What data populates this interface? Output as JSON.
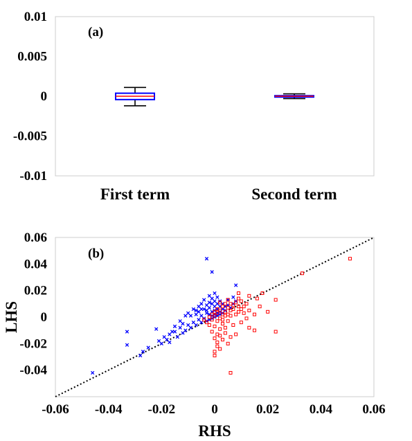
{
  "chart_data": [
    {
      "type": "box",
      "panel_label": "(a)",
      "categories": [
        "First term",
        "Second term"
      ],
      "ylim": [
        -0.01,
        0.01
      ],
      "yticks": [
        "0.01",
        "0.005",
        "0",
        "-0.005",
        "-0.01"
      ],
      "boxes": [
        {
          "whisker_low": -0.0012,
          "q1": -0.00042,
          "median": 0.0,
          "q3": 0.00038,
          "whisker_high": 0.0011
        },
        {
          "whisker_low": -0.0003,
          "q1": -7e-05,
          "median": 0.0,
          "q3": 7e-05,
          "whisker_high": 0.0003
        }
      ],
      "colors": {
        "box": "#0000ff",
        "median": "#ff0000",
        "whisker": "#000000"
      }
    },
    {
      "type": "scatter",
      "panel_label": "(b)",
      "xlabel": "RHS",
      "ylabel": "LHS",
      "xlim": [
        -0.06,
        0.06
      ],
      "ylim": [
        -0.06,
        0.06
      ],
      "xticks": [
        "-0.06",
        "-0.04",
        "-0.02",
        "0",
        "0.02",
        "0.04",
        "0.06"
      ],
      "yticks": [
        "0.06",
        "0.04",
        "0.02",
        "0",
        "-0.02",
        "-0.04"
      ],
      "reference_line": "y = x (dotted)",
      "series": [
        {
          "marker": "x",
          "color": "#0000ff",
          "points": [
            [
              -0.046,
              -0.042
            ],
            [
              -0.033,
              -0.011
            ],
            [
              -0.033,
              -0.021
            ],
            [
              -0.028,
              -0.029
            ],
            [
              -0.027,
              -0.026
            ],
            [
              -0.025,
              -0.023
            ],
            [
              -0.022,
              -0.009
            ],
            [
              -0.021,
              -0.018
            ],
            [
              -0.02,
              -0.02
            ],
            [
              -0.019,
              -0.015
            ],
            [
              -0.018,
              -0.017
            ],
            [
              -0.017,
              -0.013
            ],
            [
              -0.016,
              -0.011
            ],
            [
              -0.015,
              -0.007
            ],
            [
              -0.014,
              -0.015
            ],
            [
              -0.013,
              -0.008
            ],
            [
              -0.012,
              -0.012
            ],
            [
              -0.012,
              -0.005
            ],
            [
              -0.011,
              -0.01
            ],
            [
              -0.01,
              0.003
            ],
            [
              -0.01,
              -0.006
            ],
            [
              -0.009,
              -0.008
            ],
            [
              -0.009,
              0.001
            ],
            [
              -0.008,
              -0.004
            ],
            [
              -0.008,
              0.006
            ],
            [
              -0.007,
              -0.006
            ],
            [
              -0.007,
              0.002
            ],
            [
              -0.006,
              0.008
            ],
            [
              -0.006,
              -0.002
            ],
            [
              -0.006,
              0.004
            ],
            [
              -0.005,
              0.01
            ],
            [
              -0.005,
              -0.004
            ],
            [
              -0.005,
              0.001
            ],
            [
              -0.004,
              0.006
            ],
            [
              -0.004,
              0.013
            ],
            [
              -0.004,
              -0.001
            ],
            [
              -0.003,
              0.044
            ],
            [
              -0.003,
              0.003
            ],
            [
              -0.003,
              0.009
            ],
            [
              -0.003,
              -0.003
            ],
            [
              -0.002,
              0.016
            ],
            [
              -0.002,
              0.002
            ],
            [
              -0.002,
              0.007
            ],
            [
              -0.002,
              0.011
            ],
            [
              -0.002,
              -0.002
            ],
            [
              -0.001,
              0.034
            ],
            [
              -0.001,
              0.004
            ],
            [
              -0.001,
              0.001
            ],
            [
              -0.001,
              0.01
            ],
            [
              -0.001,
              -0.001
            ],
            [
              -0.001,
              0.014
            ],
            [
              0.0,
              0.005
            ],
            [
              0.0,
              0.002
            ],
            [
              0.0,
              0.018
            ],
            [
              0.0,
              0.008
            ],
            [
              0.0,
              0.0
            ],
            [
              0.0,
              0.012
            ],
            [
              0.001,
              0.003
            ],
            [
              0.001,
              0.006
            ],
            [
              0.001,
              0.01
            ],
            [
              0.001,
              0.001
            ],
            [
              0.001,
              0.015
            ],
            [
              0.002,
              0.004
            ],
            [
              0.002,
              0.008
            ],
            [
              0.002,
              0.012
            ],
            [
              0.002,
              0.002
            ],
            [
              0.003,
              0.006
            ],
            [
              0.003,
              0.01
            ],
            [
              0.003,
              0.003
            ],
            [
              0.004,
              0.008
            ],
            [
              0.004,
              0.005
            ],
            [
              0.005,
              0.009
            ],
            [
              0.005,
              0.013
            ],
            [
              0.006,
              0.007
            ],
            [
              0.007,
              0.015
            ],
            [
              0.007,
              0.01
            ],
            [
              0.008,
              0.012
            ],
            [
              0.008,
              0.024
            ],
            [
              -0.011,
              0.001
            ],
            [
              -0.013,
              -0.003
            ],
            [
              -0.015,
              -0.011
            ],
            [
              -0.017,
              -0.019
            ],
            [
              -0.007,
              0.005
            ],
            [
              -0.005,
              0.006
            ],
            [
              -0.003,
              0.005
            ]
          ]
        },
        {
          "marker": "square",
          "color": "#ff0000",
          "points": [
            [
              0.051,
              0.044
            ],
            [
              0.033,
              0.033
            ],
            [
              0.023,
              0.013
            ],
            [
              0.023,
              -0.011
            ],
            [
              0.02,
              0.004
            ],
            [
              0.018,
              0.018
            ],
            [
              0.016,
              0.014
            ],
            [
              0.015,
              0.002
            ],
            [
              0.013,
              -0.008
            ],
            [
              0.013,
              0.016
            ],
            [
              0.012,
              0.01
            ],
            [
              0.011,
              0.003
            ],
            [
              0.01,
              0.012
            ],
            [
              0.01,
              -0.004
            ],
            [
              0.009,
              0.018
            ],
            [
              0.009,
              0.008
            ],
            [
              0.008,
              -0.013
            ],
            [
              0.008,
              0.011
            ],
            [
              0.008,
              0.002
            ],
            [
              0.007,
              0.006
            ],
            [
              0.007,
              -0.006
            ],
            [
              0.006,
              0.01
            ],
            [
              0.006,
              -0.015
            ],
            [
              0.006,
              0.001
            ],
            [
              0.006,
              -0.042
            ],
            [
              0.005,
              0.007
            ],
            [
              0.005,
              -0.003
            ],
            [
              0.005,
              0.013
            ],
            [
              0.005,
              -0.02
            ],
            [
              0.004,
              0.004
            ],
            [
              0.004,
              -0.008
            ],
            [
              0.004,
              0.01
            ],
            [
              0.004,
              -0.012
            ],
            [
              0.003,
              0.002
            ],
            [
              0.003,
              -0.017
            ],
            [
              0.003,
              0.008
            ],
            [
              0.003,
              -0.005
            ],
            [
              0.002,
              0.005
            ],
            [
              0.002,
              -0.024
            ],
            [
              0.002,
              -0.001
            ],
            [
              0.002,
              0.011
            ],
            [
              0.002,
              -0.009
            ],
            [
              0.001,
              0.003
            ],
            [
              0.001,
              -0.013
            ],
            [
              0.001,
              0.006
            ],
            [
              0.001,
              -0.003
            ],
            [
              0.001,
              -0.019
            ],
            [
              0.0,
              0.001
            ],
            [
              0.0,
              -0.029
            ],
            [
              0.0,
              -0.026
            ],
            [
              0.0,
              -0.007
            ],
            [
              0.0,
              0.004
            ],
            [
              0.0,
              -0.016
            ],
            [
              -0.001,
              -0.002
            ],
            [
              -0.001,
              -0.011
            ],
            [
              -0.001,
              0.002
            ],
            [
              -0.002,
              -0.006
            ],
            [
              -0.002,
              0.0
            ],
            [
              -0.003,
              -0.004
            ],
            [
              -0.004,
              -0.002
            ],
            [
              0.004,
              0.001
            ],
            [
              0.006,
              0.005
            ],
            [
              0.007,
              0.009
            ],
            [
              0.009,
              0.004
            ],
            [
              0.011,
              0.008
            ],
            [
              0.003,
              -0.002
            ],
            [
              0.005,
              0.002
            ],
            [
              0.012,
              -0.001
            ],
            [
              0.015,
              -0.01
            ],
            [
              0.001,
              -0.022
            ],
            [
              0.002,
              -0.014
            ],
            [
              0.009,
              0.014
            ],
            [
              0.01,
              0.006
            ],
            [
              0.013,
              0.005
            ],
            [
              0.017,
              0.008
            ]
          ]
        }
      ]
    }
  ]
}
